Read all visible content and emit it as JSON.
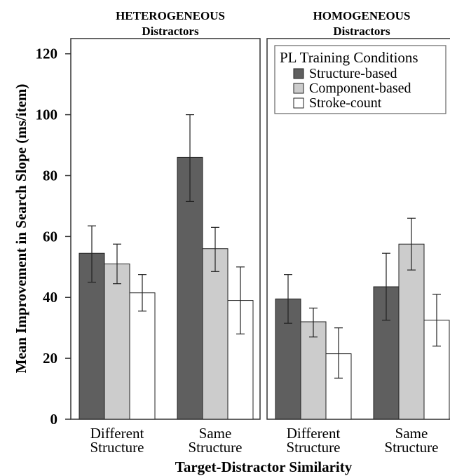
{
  "chart_data": {
    "type": "bar",
    "ylabel": "Mean Improvement in Search Slope (ms/item)",
    "xlabel": "Target-Distractor Similarity",
    "ylim": [
      0,
      125
    ],
    "yticks": [
      "0",
      "20",
      "40",
      "60",
      "80",
      "100",
      "120"
    ],
    "legend": {
      "title": "PL Training Conditions",
      "placement": "top-right",
      "entries": [
        "Structure-based",
        "Component-based",
        "Stroke-count"
      ]
    },
    "series_colors": [
      "#5f5f5f",
      "#cccccc",
      "#ffffff"
    ],
    "panels": [
      {
        "title_line1": "HETEROGENEOUS",
        "title_line2": "Distractors",
        "groups": [
          {
            "label_line1": "Different",
            "label_line2": "Structure",
            "values": [
              54.5,
              51,
              41.5
            ],
            "error_low": [
              45,
              44.5,
              35.5
            ],
            "error_high": [
              63.5,
              57.5,
              47.5
            ]
          },
          {
            "label_line1": "Same",
            "label_line2": "Structure",
            "values": [
              86,
              56,
              39
            ],
            "error_low": [
              71.5,
              48.5,
              28
            ],
            "error_high": [
              100,
              63,
              50
            ]
          }
        ]
      },
      {
        "title_line1": "HOMOGENEOUS",
        "title_line2": "Distractors",
        "groups": [
          {
            "label_line1": "Different",
            "label_line2": "Structure",
            "values": [
              39.5,
              32,
              21.5
            ],
            "error_low": [
              31.5,
              27,
              13.5
            ],
            "error_high": [
              47.5,
              36.5,
              30
            ]
          },
          {
            "label_line1": "Same",
            "label_line2": "Structure",
            "values": [
              43.5,
              57.5,
              32.5
            ],
            "error_low": [
              32.5,
              49,
              24
            ],
            "error_high": [
              54.5,
              66,
              41
            ]
          }
        ]
      }
    ]
  }
}
